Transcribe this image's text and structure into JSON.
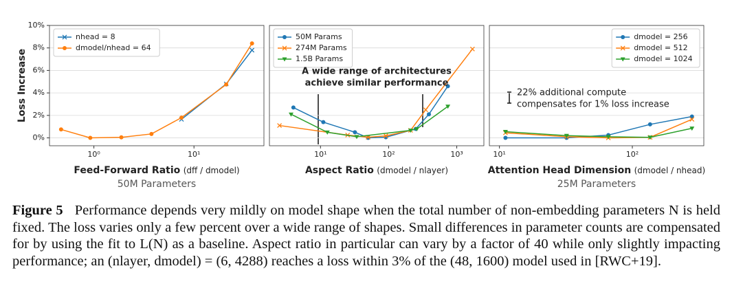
{
  "chart_data": [
    {
      "type": "line",
      "xscale": "log",
      "xlim": [
        0.36,
        50
      ],
      "ylim": [
        -0.7,
        10
      ],
      "xticks": [
        {
          "value": 1,
          "label": "10⁰"
        },
        {
          "value": 10,
          "label": "10¹"
        }
      ],
      "yticks": [
        {
          "value": 0,
          "label": "0%"
        },
        {
          "value": 2,
          "label": "2%"
        },
        {
          "value": 4,
          "label": "4%"
        },
        {
          "value": 6,
          "label": "6%"
        },
        {
          "value": 8,
          "label": "8%"
        },
        {
          "value": 10,
          "label": "10%"
        }
      ],
      "ylabel": "Loss Increase",
      "xlabel": "Feed-Forward Ratio",
      "xlabel_units": "(dff / dmodel)",
      "subtitle": "50M Parameters",
      "grid": true,
      "legend": "upper left",
      "series": [
        {
          "name": "nhead = 8",
          "color": "#1f77b4",
          "marker": "x",
          "x": [
            7.5,
            21,
            38
          ],
          "values": [
            1.65,
            4.8,
            7.8
          ]
        },
        {
          "name": "dmodel/nhead = 64",
          "color": "#ff7f0e",
          "marker": "o",
          "x": [
            0.47,
            0.92,
            1.88,
            3.76,
            7.5,
            21,
            38
          ],
          "values": [
            0.75,
            0,
            0.05,
            0.35,
            1.8,
            4.75,
            8.4
          ]
        }
      ]
    },
    {
      "type": "line",
      "xscale": "log",
      "xlim": [
        1.78,
        2500
      ],
      "ylim": [
        -0.7,
        10
      ],
      "xticks": [
        {
          "value": 10,
          "label": "10¹"
        },
        {
          "value": 100,
          "label": "10²"
        },
        {
          "value": 1000,
          "label": "10³"
        }
      ],
      "yticks": [
        0,
        2,
        4,
        6,
        8,
        10
      ],
      "xlabel": "Aspect Ratio",
      "xlabel_units": "(dmodel / nlayer)",
      "annotation": [
        "A wide range of architectures",
        "achieve similar performance"
      ],
      "grid": true,
      "legend": "upper left",
      "series": [
        {
          "name": "50M Params",
          "color": "#1f77b4",
          "marker": "o",
          "x": [
            4,
            11,
            32,
            50,
            91,
            250,
            390,
            740
          ],
          "values": [
            2.7,
            1.4,
            0.5,
            0,
            0.06,
            0.8,
            2.1,
            4.6
          ]
        },
        {
          "name": "274M Params",
          "color": "#ff7f0e",
          "marker": "x",
          "x": [
            2.5,
            25,
            50,
            91,
            210,
            350,
            1700
          ],
          "values": [
            1.1,
            0.25,
            0.06,
            0.18,
            0.67,
            2.5,
            7.9
          ]
        },
        {
          "name": "1.5B Params",
          "color": "#2ca02c",
          "marker": "v",
          "x": [
            3.7,
            12.6,
            34,
            210,
            260,
            740
          ],
          "values": [
            2.1,
            0.5,
            0.1,
            0.67,
            0.8,
            2.8
          ]
        }
      ]
    },
    {
      "type": "line",
      "xscale": "log",
      "xlim": [
        8.4,
        345
      ],
      "ylim": [
        -0.7,
        10
      ],
      "xticks": [
        {
          "value": 10,
          "label": "10¹"
        },
        {
          "value": 100,
          "label": "10²"
        }
      ],
      "yticks": [
        0,
        2,
        4,
        6,
        8,
        10
      ],
      "xlabel": "Attention Head Dimension",
      "xlabel_units": "(dmodel / nhead)",
      "subtitle": "25M Parameters",
      "annotation": [
        "22% additional compute",
        "compensates for 1% loss increase"
      ],
      "grid": true,
      "legend": "upper right",
      "series": [
        {
          "name": "dmodel = 256",
          "color": "#1f77b4",
          "marker": "o",
          "x": [
            11.1,
            32,
            66,
            136,
            281
          ],
          "values": [
            0,
            0,
            0.25,
            1.2,
            1.9
          ]
        },
        {
          "name": "dmodel = 512",
          "color": "#ff7f0e",
          "marker": "x",
          "x": [
            11.1,
            32,
            66,
            136,
            281
          ],
          "values": [
            0.45,
            0.1,
            0,
            0.05,
            1.65
          ]
        },
        {
          "name": "dmodel = 1024",
          "color": "#2ca02c",
          "marker": "v",
          "x": [
            11.1,
            32,
            66,
            136,
            281
          ],
          "values": [
            0.55,
            0.2,
            0.1,
            0.05,
            0.85
          ]
        }
      ]
    }
  ],
  "caption": {
    "label": "Figure 5",
    "text": "Performance depends very mildly on model shape when the total number of non-embedding parameters N is held fixed. The loss varies only a few percent over a wide range of shapes. Small differences in parameter counts are compensated for by using the fit to L(N) as a baseline. Aspect ratio in particular can vary by a factor of 40 while only slightly impacting performance; an (nlayer, dmodel) = (6, 4288) reaches a loss within 3% of the (48, 1600) model used in [RWC+19]."
  }
}
